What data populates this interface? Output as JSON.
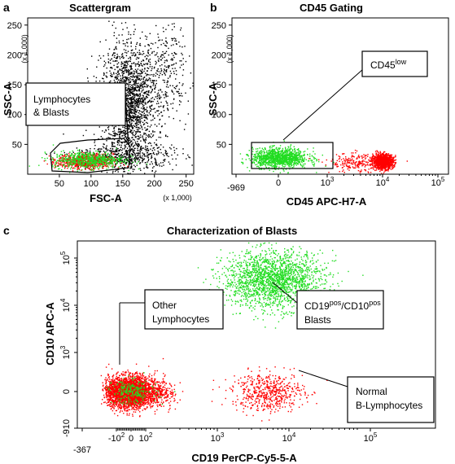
{
  "chart_data": [
    {
      "panel": "a",
      "type": "scatter",
      "title": "Scattergram",
      "xlabel": "FSC-A",
      "ylabel": "SSC-A",
      "x_multiplier": "(x 1,000)",
      "y_multiplier": "(x 1,000)",
      "xlim": [
        0,
        262
      ],
      "ylim": [
        0,
        262
      ],
      "x_ticks": [
        50,
        100,
        150,
        200,
        250
      ],
      "y_ticks": [
        50,
        100,
        150,
        200,
        250
      ],
      "gate_label": [
        "Lymphocytes",
        "& Blasts"
      ],
      "series": [
        {
          "name": "",
          "color": "#000000",
          "population": "other cells",
          "clusters": [
            {
              "cx": 160,
              "cy": 120,
              "sx": 22,
              "sy": 48,
              "n": 1900
            },
            {
              "cx": 150,
              "cy": 30,
              "sx": 40,
              "sy": 12,
              "n": 500
            },
            {
              "cx": 220,
              "cy": 175,
              "sx": 18,
              "sy": 40,
              "n": 250
            }
          ]
        },
        {
          "name": "",
          "color": "#ff0000",
          "population": "lymphocytes",
          "clusters": [
            {
              "cx": 90,
              "cy": 22,
              "sx": 22,
              "sy": 6,
              "n": 700
            }
          ]
        },
        {
          "name": "",
          "color": "#22dd22",
          "population": "blasts",
          "clusters": [
            {
              "cx": 95,
              "cy": 25,
              "sx": 28,
              "sy": 7,
              "n": 600
            }
          ]
        }
      ]
    },
    {
      "panel": "b",
      "type": "scatter",
      "title": "CD45 Gating",
      "xlabel": "CD45 APC-H7-A",
      "ylabel": "SSC-A",
      "y_multiplier": "(x 1,000)",
      "x_scale": "biexponential",
      "ylim": [
        0,
        262
      ],
      "x_ticks": [
        "-969",
        "0",
        "10^3",
        "10^4",
        "10^5"
      ],
      "y_ticks": [
        50,
        100,
        150,
        200,
        250
      ],
      "gate_label": {
        "base": "CD45",
        "sup": "low"
      },
      "series": [
        {
          "name": "",
          "color": "#22dd22",
          "population": "CD45 low blasts",
          "clusters": [
            {
              "cx": 0,
              "cy": 28,
              "sx": 300,
              "sy": 8,
              "n": 1200
            }
          ]
        },
        {
          "name": "",
          "color": "#ff0000",
          "population": "CD45 high lymphocytes",
          "clusters": [
            {
              "cx": 10000,
              "cy": 22,
              "sx": 0.09,
              "sy": 6,
              "n": 1100
            },
            {
              "cx": 3500,
              "cy": 20,
              "sx": 0.25,
              "sy": 8,
              "n": 250
            }
          ]
        }
      ]
    },
    {
      "panel": "c",
      "type": "scatter",
      "title": "Characterization of Blasts",
      "xlabel": "CD19 PerCP-Cy5-5-A",
      "ylabel": "CD10 APC-A",
      "x_scale": "biexponential",
      "y_scale": "biexponential",
      "x_ticks": [
        "-367",
        "-10^2",
        "0",
        "10^2",
        "10^3",
        "10^4",
        "10^5"
      ],
      "y_ticks": [
        "-910",
        "0",
        "10^3",
        "10^4",
        "10^5"
      ],
      "annotations": [
        {
          "lines": [
            "Other",
            "Lymphocytes"
          ]
        },
        {
          "lines": [
            "CD19/CD10",
            "Blasts"
          ],
          "rich": [
            {
              "base": "CD19",
              "sup": "pos"
            },
            {
              "base": "/CD10",
              "sup": "pos"
            }
          ]
        },
        {
          "lines": [
            "Normal",
            "B-Lymphocytes"
          ]
        }
      ],
      "series": [
        {
          "name": "",
          "color": "#ff0000",
          "population": "other lymphocytes",
          "clusters": [
            {
              "cx": 0,
              "cy": 0,
              "sx": 90,
              "sy": 200,
              "n": 3200
            }
          ]
        },
        {
          "name": "",
          "color": "#22dd22",
          "population": "CD19pos/CD10pos blasts",
          "clusters": [
            {
              "cx": 6000,
              "cy": 35000,
              "sx": 0.35,
              "sy": 0.3,
              "n": 2000
            },
            {
              "cx": 0,
              "cy": 0,
              "sx": 70,
              "sy": 150,
              "n": 250
            }
          ]
        },
        {
          "name": "",
          "color": "#ff0000",
          "population": "normal B-lymphocytes",
          "clusters": [
            {
              "cx": 5000,
              "cy": 0,
              "sx": 0.25,
              "sy": 250,
              "n": 550
            }
          ]
        }
      ]
    }
  ]
}
